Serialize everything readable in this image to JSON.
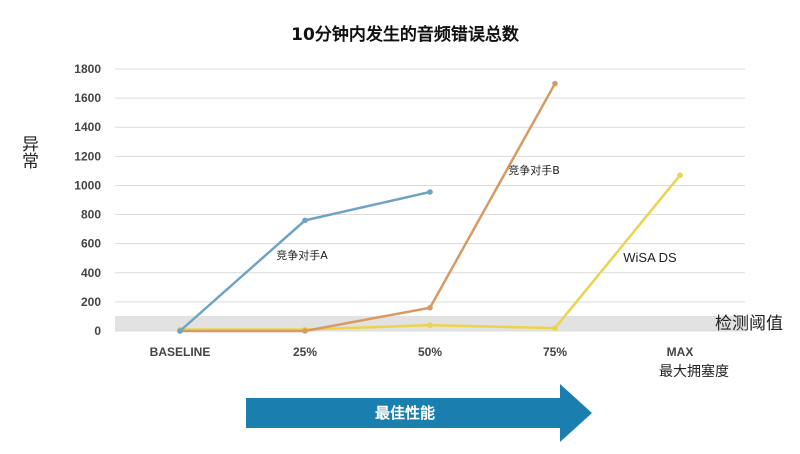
{
  "chart_data": {
    "type": "line",
    "title": "10分钟内发生的音频错误总数",
    "ylabel": "异常",
    "xlabel": "最大拥塞度",
    "categories": [
      "BASELINE",
      "25%",
      "50%",
      "75%",
      "MAX"
    ],
    "ylim": [
      0,
      1800
    ],
    "yticks": [
      "0",
      "200",
      "400",
      "600",
      "800",
      "1000",
      "1200",
      "1400",
      "1600",
      "1800"
    ],
    "grid": true,
    "threshold": {
      "label": "检测阈值",
      "value": 100
    },
    "series": [
      {
        "name": "竞争对手A",
        "color": "#6fa3c4",
        "values": [
          0,
          760,
          955,
          null,
          null
        ]
      },
      {
        "name": "竞争对手B",
        "color": "#d99a62",
        "values": [
          0,
          0,
          160,
          1700,
          null
        ]
      },
      {
        "name": "WiSA DS",
        "color": "#ecd34d",
        "values": [
          10,
          10,
          40,
          20,
          1070
        ]
      }
    ],
    "arrow_label": "最佳性能"
  }
}
